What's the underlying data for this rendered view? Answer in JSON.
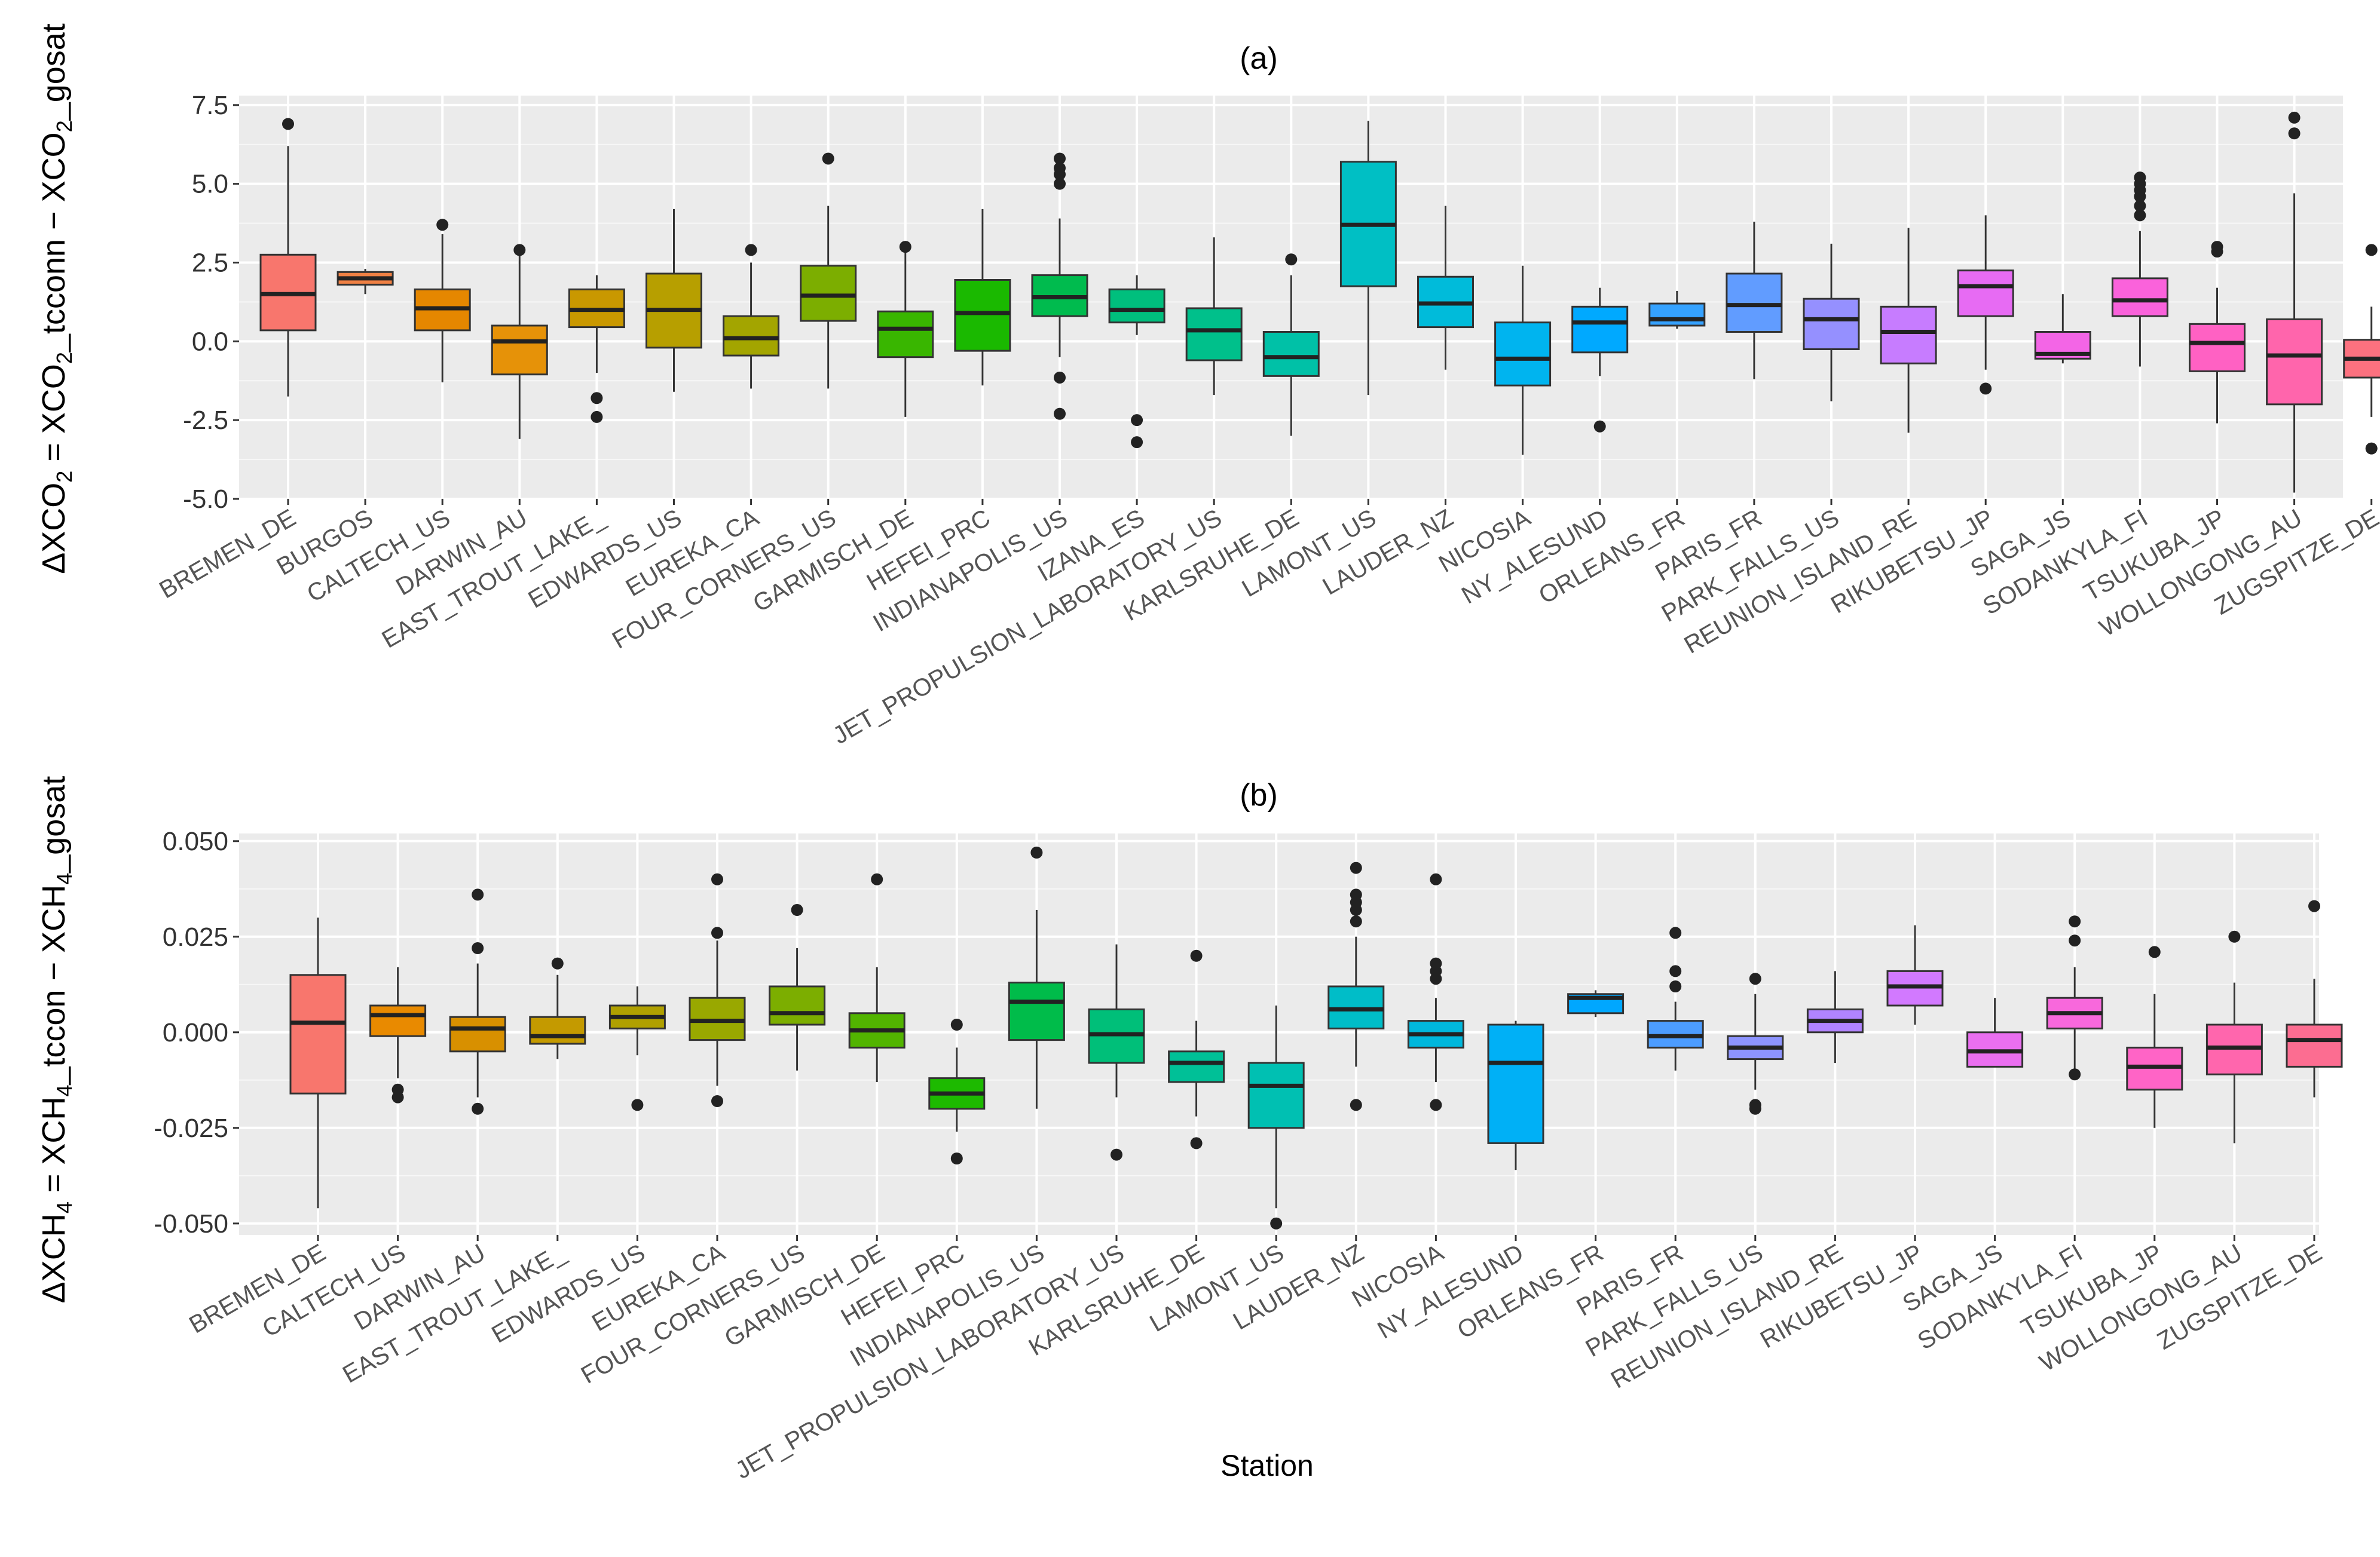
{
  "figure": {
    "xlabel": "Station"
  },
  "chart_data": [
    {
      "type": "boxplot",
      "title": "(a)",
      "ylabel_parts": [
        "ΔXCO",
        "2",
        " = XCO",
        "2",
        "_tcconn − XCO",
        "2",
        "_gosat"
      ],
      "ylim": [
        -5.0,
        7.8
      ],
      "yticks": [
        -5.0,
        -2.5,
        0.0,
        2.5,
        5.0,
        7.5
      ],
      "ytick_labels": [
        "-5.0",
        "-2.5",
        "0.0",
        "2.5",
        "5.0",
        "7.5"
      ],
      "boxes": [
        {
          "station": "BREMEN_DE",
          "color": "#F8766D",
          "whisker_low": -1.75,
          "q1": 0.35,
          "median": 1.5,
          "q3": 2.75,
          "whisker_high": 6.2,
          "outliers": [
            6.9
          ]
        },
        {
          "station": "BURGOS",
          "color": "#EE8043",
          "whisker_low": 1.5,
          "q1": 1.8,
          "median": 2.0,
          "q3": 2.2,
          "whisker_high": 2.3,
          "outliers": []
        },
        {
          "station": "CALTECH_US",
          "color": "#E58700",
          "whisker_low": -1.3,
          "q1": 0.35,
          "median": 1.05,
          "q3": 1.65,
          "whisker_high": 3.4,
          "outliers": [
            3.7
          ]
        },
        {
          "station": "DARWIN_AU",
          "color": "#E69208",
          "whisker_low": -3.1,
          "q1": -1.05,
          "median": 0.0,
          "q3": 0.5,
          "whisker_high": 2.9,
          "outliers": [
            2.9
          ]
        },
        {
          "station": "EAST_TROUT_LAKE_",
          "color": "#C99800",
          "whisker_low": -1.0,
          "q1": 0.45,
          "median": 1.0,
          "q3": 1.65,
          "whisker_high": 2.1,
          "outliers": [
            -1.8,
            -2.4
          ]
        },
        {
          "station": "EDWARDS_US",
          "color": "#B79F00",
          "whisker_low": -1.6,
          "q1": -0.2,
          "median": 1.0,
          "q3": 2.15,
          "whisker_high": 4.2,
          "outliers": []
        },
        {
          "station": "EUREKA_CA",
          "color": "#A3A500",
          "whisker_low": -1.5,
          "q1": -0.45,
          "median": 0.1,
          "q3": 0.8,
          "whisker_high": 2.5,
          "outliers": [
            2.9
          ]
        },
        {
          "station": "FOUR_CORNERS_US",
          "color": "#7CAE00",
          "whisker_low": -1.5,
          "q1": 0.65,
          "median": 1.45,
          "q3": 2.4,
          "whisker_high": 4.3,
          "outliers": [
            5.8
          ]
        },
        {
          "station": "GARMISCH_DE",
          "color": "#39B600",
          "whisker_low": -2.4,
          "q1": -0.5,
          "median": 0.4,
          "q3": 0.95,
          "whisker_high": 2.9,
          "outliers": [
            3.0
          ]
        },
        {
          "station": "HEFEI_PRC",
          "color": "#1AB900",
          "whisker_low": -1.4,
          "q1": -0.3,
          "median": 0.9,
          "q3": 1.95,
          "whisker_high": 4.2,
          "outliers": []
        },
        {
          "station": "INDIANAPOLIS_US",
          "color": "#00BB4E",
          "whisker_low": -0.5,
          "q1": 0.8,
          "median": 1.4,
          "q3": 2.1,
          "whisker_high": 3.9,
          "outliers": [
            -1.15,
            -2.3,
            5.0,
            5.3,
            5.5,
            5.8
          ]
        },
        {
          "station": "IZANA_ES",
          "color": "#00BF7D",
          "whisker_low": 0.2,
          "q1": 0.6,
          "median": 1.0,
          "q3": 1.65,
          "whisker_high": 2.1,
          "outliers": [
            -2.5,
            -3.2
          ]
        },
        {
          "station": "JET_PROPULSION_LABORATORY_US",
          "color": "#00C08B",
          "whisker_low": -1.7,
          "q1": -0.6,
          "median": 0.35,
          "q3": 1.05,
          "whisker_high": 3.3,
          "outliers": []
        },
        {
          "station": "KARLSRUHE_DE",
          "color": "#00C1A7",
          "whisker_low": -3.0,
          "q1": -1.1,
          "median": -0.5,
          "q3": 0.3,
          "whisker_high": 2.1,
          "outliers": [
            2.6
          ]
        },
        {
          "station": "LAMONT_US",
          "color": "#00BFC4",
          "whisker_low": -1.7,
          "q1": 1.75,
          "median": 3.7,
          "q3": 5.7,
          "whisker_high": 7.0,
          "outliers": []
        },
        {
          "station": "LAUDER_NZ",
          "color": "#00BBDA",
          "whisker_low": -0.9,
          "q1": 0.45,
          "median": 1.2,
          "q3": 2.05,
          "whisker_high": 4.3,
          "outliers": []
        },
        {
          "station": "NICOSIA",
          "color": "#00B4EF",
          "whisker_low": -3.6,
          "q1": -1.4,
          "median": -0.55,
          "q3": 0.6,
          "whisker_high": 2.4,
          "outliers": []
        },
        {
          "station": "NY_ALESUND",
          "color": "#00A9FF",
          "whisker_low": -1.1,
          "q1": -0.35,
          "median": 0.6,
          "q3": 1.1,
          "whisker_high": 1.7,
          "outliers": [
            -2.7
          ]
        },
        {
          "station": "ORLEANS_FR",
          "color": "#35A2FF",
          "whisker_low": 0.4,
          "q1": 0.5,
          "median": 0.7,
          "q3": 1.2,
          "whisker_high": 1.6,
          "outliers": []
        },
        {
          "station": "PARIS_FR",
          "color": "#619CFF",
          "whisker_low": -1.2,
          "q1": 0.3,
          "median": 1.15,
          "q3": 2.15,
          "whisker_high": 3.8,
          "outliers": []
        },
        {
          "station": "PARK_FALLS_US",
          "color": "#9590FF",
          "whisker_low": -1.9,
          "q1": -0.25,
          "median": 0.7,
          "q3": 1.35,
          "whisker_high": 3.1,
          "outliers": []
        },
        {
          "station": "REUNION_ISLAND_RE",
          "color": "#C77CFF",
          "whisker_low": -2.9,
          "q1": -0.7,
          "median": 0.3,
          "q3": 1.1,
          "whisker_high": 3.6,
          "outliers": []
        },
        {
          "station": "RIKUBETSU_JP",
          "color": "#E76BF3",
          "whisker_low": -0.9,
          "q1": 0.8,
          "median": 1.75,
          "q3": 2.25,
          "whisker_high": 4.0,
          "outliers": [
            -1.5
          ]
        },
        {
          "station": "SAGA_JS",
          "color": "#F365E6",
          "whisker_low": -0.7,
          "q1": -0.55,
          "median": -0.4,
          "q3": 0.3,
          "whisker_high": 1.5,
          "outliers": []
        },
        {
          "station": "SODANKYLA_FI",
          "color": "#FA62DB",
          "whisker_low": -0.8,
          "q1": 0.8,
          "median": 1.3,
          "q3": 2.0,
          "whisker_high": 3.5,
          "outliers": [
            4.0,
            4.3,
            4.6,
            4.8,
            5.0,
            5.2
          ]
        },
        {
          "station": "TSUKUBA_JP",
          "color": "#FF61C3",
          "whisker_low": -2.6,
          "q1": -0.95,
          "median": -0.05,
          "q3": 0.55,
          "whisker_high": 1.7,
          "outliers": [
            2.85,
            3.0
          ]
        },
        {
          "station": "WOLLONGONG_AU",
          "color": "#FF65AC",
          "whisker_low": -4.8,
          "q1": -2.0,
          "median": -0.45,
          "q3": 0.7,
          "whisker_high": 4.7,
          "outliers": [
            6.6,
            7.1
          ]
        },
        {
          "station": "ZUGSPITZE_DE",
          "color": "#FC717F",
          "whisker_low": -2.4,
          "q1": -1.15,
          "median": -0.55,
          "q3": 0.05,
          "whisker_high": 1.1,
          "outliers": [
            2.9,
            -3.4
          ]
        }
      ]
    },
    {
      "type": "boxplot",
      "title": "(b)",
      "ylabel_parts": [
        "ΔXCH",
        "4",
        " = XCH",
        "4",
        "_tccon − XCH",
        "4",
        "_gosat"
      ],
      "ylim": [
        -0.053,
        0.052
      ],
      "yticks": [
        -0.05,
        -0.025,
        0.0,
        0.025,
        0.05
      ],
      "ytick_labels": [
        "-0.050",
        "-0.025",
        "0.000",
        "0.025",
        "0.050"
      ],
      "boxes": [
        {
          "station": "BREMEN_DE",
          "color": "#F8766D",
          "whisker_low": -0.046,
          "q1": -0.016,
          "median": 0.0025,
          "q3": 0.015,
          "whisker_high": 0.03,
          "outliers": []
        },
        {
          "station": "CALTECH_US",
          "color": "#E98A00",
          "whisker_low": -0.012,
          "q1": -0.001,
          "median": 0.0045,
          "q3": 0.007,
          "whisker_high": 0.017,
          "outliers": [
            -0.015,
            -0.017
          ]
        },
        {
          "station": "DARWIN_AU",
          "color": "#D89000",
          "whisker_low": -0.017,
          "q1": -0.005,
          "median": 0.001,
          "q3": 0.004,
          "whisker_high": 0.018,
          "outliers": [
            -0.02,
            0.022,
            0.036
          ]
        },
        {
          "station": "EAST_TROUT_LAKE_",
          "color": "#C49A00",
          "whisker_low": -0.007,
          "q1": -0.003,
          "median": -0.001,
          "q3": 0.004,
          "whisker_high": 0.015,
          "outliers": [
            0.018
          ]
        },
        {
          "station": "EDWARDS_US",
          "color": "#B0A000",
          "whisker_low": -0.006,
          "q1": 0.001,
          "median": 0.004,
          "q3": 0.007,
          "whisker_high": 0.012,
          "outliers": [
            -0.019
          ]
        },
        {
          "station": "EUREKA_CA",
          "color": "#99A800",
          "whisker_low": -0.014,
          "q1": -0.002,
          "median": 0.003,
          "q3": 0.009,
          "whisker_high": 0.024,
          "outliers": [
            -0.018,
            0.026,
            0.04
          ]
        },
        {
          "station": "FOUR_CORNERS_US",
          "color": "#7CAE00",
          "whisker_low": -0.01,
          "q1": 0.002,
          "median": 0.005,
          "q3": 0.012,
          "whisker_high": 0.022,
          "outliers": [
            0.032
          ]
        },
        {
          "station": "GARMISCH_DE",
          "color": "#52B400",
          "whisker_low": -0.013,
          "q1": -0.004,
          "median": 0.0005,
          "q3": 0.005,
          "whisker_high": 0.017,
          "outliers": [
            0.04
          ]
        },
        {
          "station": "HEFEI_PRC",
          "color": "#1DBA00",
          "whisker_low": -0.026,
          "q1": -0.02,
          "median": -0.016,
          "q3": -0.012,
          "whisker_high": -0.004,
          "outliers": [
            0.002,
            -0.033
          ]
        },
        {
          "station": "INDIANAPOLIS_US",
          "color": "#00BC4A",
          "whisker_low": -0.02,
          "q1": -0.002,
          "median": 0.008,
          "q3": 0.013,
          "whisker_high": 0.032,
          "outliers": [
            0.047
          ]
        },
        {
          "station": "JET_PROPULSION_LABORATORY_US",
          "color": "#00BF79",
          "whisker_low": -0.017,
          "q1": -0.008,
          "median": -0.0005,
          "q3": 0.006,
          "whisker_high": 0.023,
          "outliers": [
            -0.032
          ]
        },
        {
          "station": "KARLSRUHE_DE",
          "color": "#00C097",
          "whisker_low": -0.022,
          "q1": -0.013,
          "median": -0.008,
          "q3": -0.005,
          "whisker_high": 0.003,
          "outliers": [
            0.02,
            -0.029
          ]
        },
        {
          "station": "LAMONT_US",
          "color": "#00C0B2",
          "whisker_low": -0.046,
          "q1": -0.025,
          "median": -0.014,
          "q3": -0.008,
          "whisker_high": 0.007,
          "outliers": [
            -0.05
          ]
        },
        {
          "station": "LAUDER_NZ",
          "color": "#00BDC8",
          "whisker_low": -0.009,
          "q1": 0.001,
          "median": 0.006,
          "q3": 0.012,
          "whisker_high": 0.025,
          "outliers": [
            -0.019,
            0.029,
            0.032,
            0.034,
            0.036,
            0.043
          ]
        },
        {
          "station": "NICOSIA",
          "color": "#00B7DC",
          "whisker_low": -0.013,
          "q1": -0.004,
          "median": -0.0005,
          "q3": 0.003,
          "whisker_high": 0.009,
          "outliers": [
            -0.019,
            0.014,
            0.016,
            0.018,
            0.04
          ]
        },
        {
          "station": "NY_ALESUND",
          "color": "#00B0F6",
          "whisker_low": -0.036,
          "q1": -0.029,
          "median": -0.008,
          "q3": 0.002,
          "whisker_high": 0.003,
          "outliers": []
        },
        {
          "station": "ORLEANS_FR",
          "color": "#00A7FF",
          "whisker_low": 0.004,
          "q1": 0.005,
          "median": 0.009,
          "q3": 0.01,
          "whisker_high": 0.011,
          "outliers": []
        },
        {
          "station": "PARIS_FR",
          "color": "#4C9CFF",
          "whisker_low": -0.01,
          "q1": -0.004,
          "median": -0.001,
          "q3": 0.003,
          "whisker_high": 0.008,
          "outliers": [
            0.012,
            0.016,
            0.026
          ]
        },
        {
          "station": "PARK_FALLS_US",
          "color": "#8D94FF",
          "whisker_low": -0.015,
          "q1": -0.007,
          "median": -0.004,
          "q3": -0.001,
          "whisker_high": 0.01,
          "outliers": [
            -0.019,
            -0.02,
            0.014
          ]
        },
        {
          "station": "REUNION_ISLAND_RE",
          "color": "#B184FF",
          "whisker_low": -0.008,
          "q1": 0.0,
          "median": 0.003,
          "q3": 0.006,
          "whisker_high": 0.016,
          "outliers": []
        },
        {
          "station": "RIKUBETSU_JP",
          "color": "#D279FF",
          "whisker_low": 0.002,
          "q1": 0.007,
          "median": 0.012,
          "q3": 0.016,
          "whisker_high": 0.028,
          "outliers": []
        },
        {
          "station": "SAGA_JS",
          "color": "#EA6FF0",
          "whisker_low": -0.009,
          "q1": -0.009,
          "median": -0.005,
          "q3": 0.0,
          "whisker_high": 0.009,
          "outliers": []
        },
        {
          "station": "SODANKYLA_FI",
          "color": "#F868DC",
          "whisker_low": -0.01,
          "q1": 0.001,
          "median": 0.005,
          "q3": 0.009,
          "whisker_high": 0.017,
          "outliers": [
            0.024,
            0.029,
            -0.011
          ]
        },
        {
          "station": "TSUKUBA_JP",
          "color": "#FF64C6",
          "whisker_low": -0.025,
          "q1": -0.015,
          "median": -0.009,
          "q3": -0.004,
          "whisker_high": 0.01,
          "outliers": [
            0.021
          ]
        },
        {
          "station": "WOLLONGONG_AU",
          "color": "#FF66AD",
          "whisker_low": -0.029,
          "q1": -0.011,
          "median": -0.004,
          "q3": 0.002,
          "whisker_high": 0.013,
          "outliers": [
            0.025
          ]
        },
        {
          "station": "ZUGSPITZE_DE",
          "color": "#FC6D91",
          "whisker_low": -0.017,
          "q1": -0.009,
          "median": -0.002,
          "q3": 0.002,
          "whisker_high": 0.014,
          "outliers": [
            0.033
          ]
        }
      ]
    }
  ]
}
